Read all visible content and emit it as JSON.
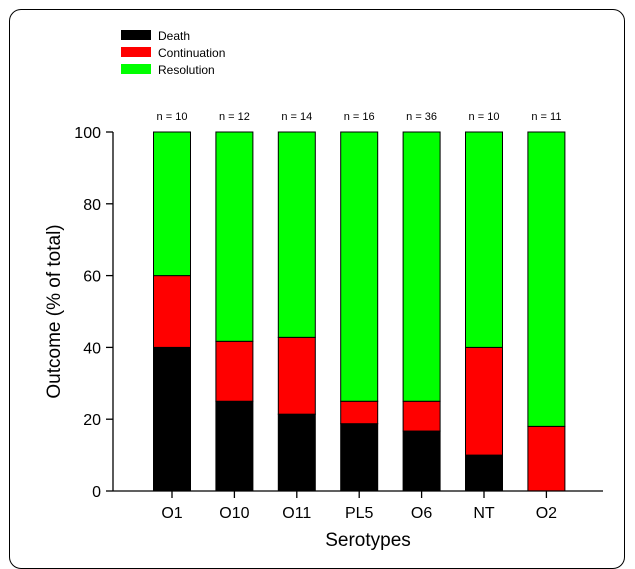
{
  "chart_data": {
    "type": "bar",
    "stacked": true,
    "categories": [
      "O1",
      "O10",
      "O11",
      "PL5",
      "O6",
      "NT",
      "O2"
    ],
    "n_labels": [
      "n = 10",
      "n = 12",
      "n = 14",
      "n = 16",
      "n = 36",
      "n = 10",
      "n = 11"
    ],
    "series": [
      {
        "name": "Death",
        "color": "#000000",
        "values": [
          40,
          25,
          21.4,
          18.75,
          16.7,
          10,
          0
        ]
      },
      {
        "name": "Continuation",
        "color": "#ff0000",
        "values": [
          20,
          16.7,
          21.4,
          6.25,
          8.3,
          30,
          18
        ]
      },
      {
        "name": "Resolution",
        "color": "#00ff00",
        "values": [
          40,
          58.3,
          57.2,
          75,
          75,
          60,
          82
        ]
      }
    ],
    "xlabel": "Serotypes",
    "ylabel": "Outcome (% of total)",
    "ylim": [
      0,
      100
    ],
    "yticks": [
      0,
      20,
      40,
      60,
      80,
      100
    ],
    "legend_position": "top-left",
    "grid": false
  }
}
